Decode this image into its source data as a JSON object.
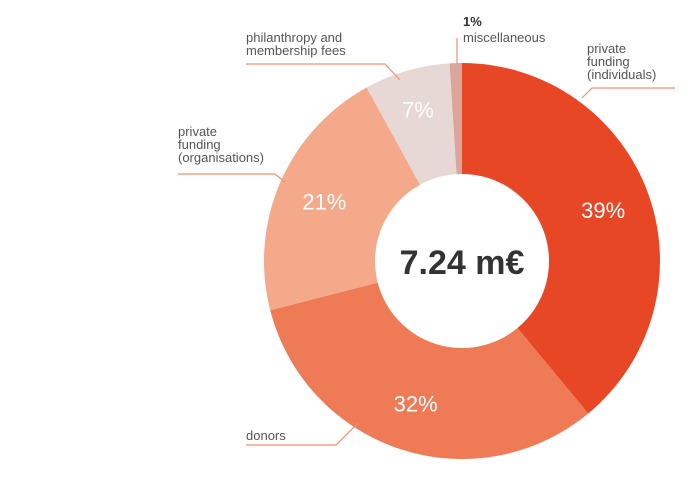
{
  "chart_data": {
    "type": "pie",
    "variant": "donut",
    "total_label": "7.24 m€",
    "slices": [
      {
        "id": "private-individuals",
        "label_lines": [
          "private",
          "funding",
          "(individuals)"
        ],
        "value_label": "39%",
        "value": 39,
        "color": "#e84726"
      },
      {
        "id": "donors",
        "label_lines": [
          "donors"
        ],
        "value_label": "32%",
        "value": 32,
        "color": "#ef7a56"
      },
      {
        "id": "private-organisations",
        "label_lines": [
          "private",
          "funding",
          "(organisations)"
        ],
        "value_label": "21%",
        "value": 21,
        "color": "#f4a98a"
      },
      {
        "id": "philanthropy",
        "label_lines": [
          "philanthropy and",
          "membership fees"
        ],
        "value_label": "7%",
        "value": 7,
        "color": "#e8d8d5"
      },
      {
        "id": "miscellaneous",
        "label_lines": [
          "miscellaneous"
        ],
        "value_label": "1%",
        "value": 1,
        "color": "#dca59c"
      }
    ],
    "leader_color": "#f08f70"
  }
}
